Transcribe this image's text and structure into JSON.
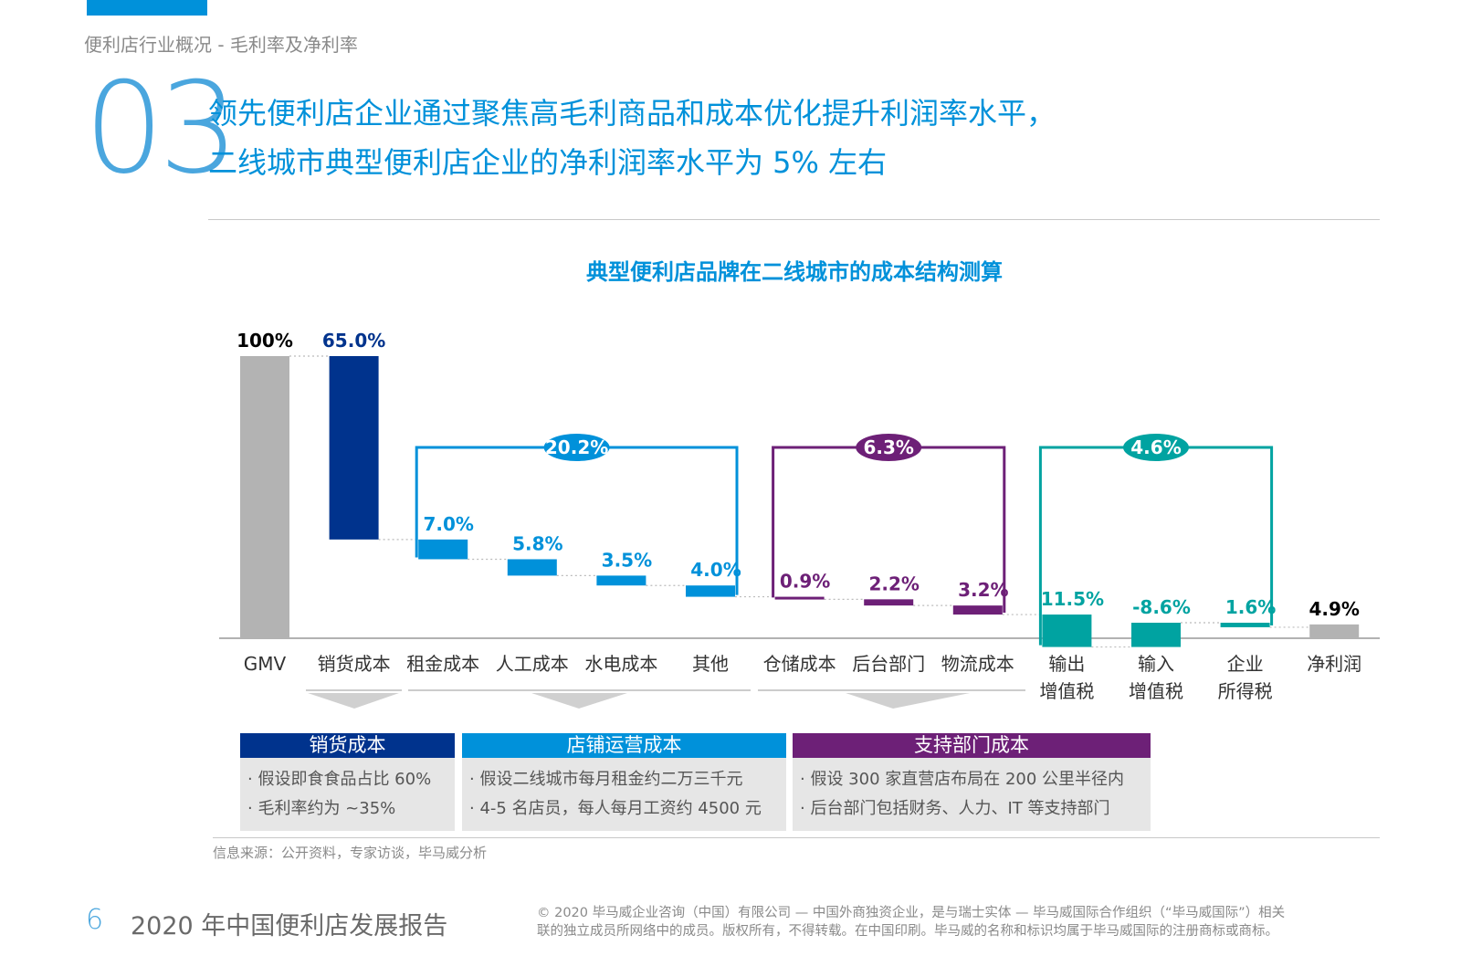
{
  "header": {
    "section_label": "便利店行业概况 - 毛利率及净利率",
    "section_number": "03",
    "headline_line1": "领先便利店企业通过聚焦高毛利商品和成本优化提升利润率水平，",
    "headline_line2": "二线城市典型便利店企业的净利润率水平为 5% 左右"
  },
  "chart_data": {
    "type": "bar",
    "subtype": "waterfall",
    "title": "典型便利店品牌在二线城市的成本结构测算",
    "categories": [
      "GMV",
      "销货成本",
      "租金成本",
      "人工成本",
      "水电成本",
      "其他",
      "仓储成本",
      "后台部门",
      "物流成本",
      "输出\n增值税",
      "输入\n增值税",
      "企业\n所得税",
      "净利润"
    ],
    "values": [
      100,
      65.0,
      7.0,
      5.8,
      3.5,
      4.0,
      0.9,
      2.2,
      3.2,
      11.5,
      -8.6,
      1.6,
      4.9
    ],
    "value_labels": [
      "100%",
      "65.0%",
      "7.0%",
      "5.8%",
      "3.5%",
      "4.0%",
      "0.9%",
      "2.2%",
      "3.2%",
      "11.5%",
      "-8.6%",
      "1.6%",
      "4.9%"
    ],
    "groups": [
      {
        "label": "20.2%",
        "from": 2,
        "to": 5,
        "color": "#0091da"
      },
      {
        "label": "6.3%",
        "from": 6,
        "to": 8,
        "color": "#6d2077"
      },
      {
        "label": "4.6%",
        "from": 9,
        "to": 11,
        "color": "#00a3a1"
      }
    ],
    "bar_colors": [
      "#b3b3b3",
      "#00338d",
      "#0091da",
      "#0091da",
      "#0091da",
      "#0091da",
      "#6d2077",
      "#6d2077",
      "#6d2077",
      "#00a3a1",
      "#00a3a1",
      "#00a3a1",
      "#b3b3b3"
    ],
    "label_colors": [
      "#000000",
      "#00338d",
      "#0091da",
      "#0091da",
      "#0091da",
      "#0091da",
      "#6d2077",
      "#6d2077",
      "#6d2077",
      "#00a3a1",
      "#00a3a1",
      "#00a3a1",
      "#000000"
    ],
    "ylim": [
      0,
      100
    ],
    "grid": false,
    "legend": "none"
  },
  "cost_boxes": [
    {
      "title": "销货成本",
      "color": "#00338d",
      "lines": [
        "· 假设即食食品占比 60%",
        "· 毛利率约为 ~35%"
      ]
    },
    {
      "title": "店铺运营成本",
      "color": "#0091da",
      "lines": [
        "· 假设二线城市每月租金约二万三千元",
        "· 4-5 名店员，每人每月工资约 4500 元"
      ]
    },
    {
      "title": "支持部门成本",
      "color": "#6d2077",
      "lines": [
        "· 假设 300 家直营店布局在 200 公里半径内",
        "· 后台部门包括财务、人力、IT 等支持部门"
      ]
    }
  ],
  "source": "信息来源：公开资料，专家访谈，毕马威分析",
  "footer": {
    "page_number": "6",
    "report_title": "2020 年中国便利店发展报告",
    "copyright_line1": "© 2020 毕马威企业咨询（中国）有限公司 — 中国外商独资企业，是与瑞士实体 — 毕马威国际合作组织（“毕马威国际”）相关",
    "copyright_line2": "联的独立成员所网络中的成员。版权所有，不得转载。在中国印刷。毕马威的名称和标识均属于毕马威国际的注册商标或商标。"
  }
}
